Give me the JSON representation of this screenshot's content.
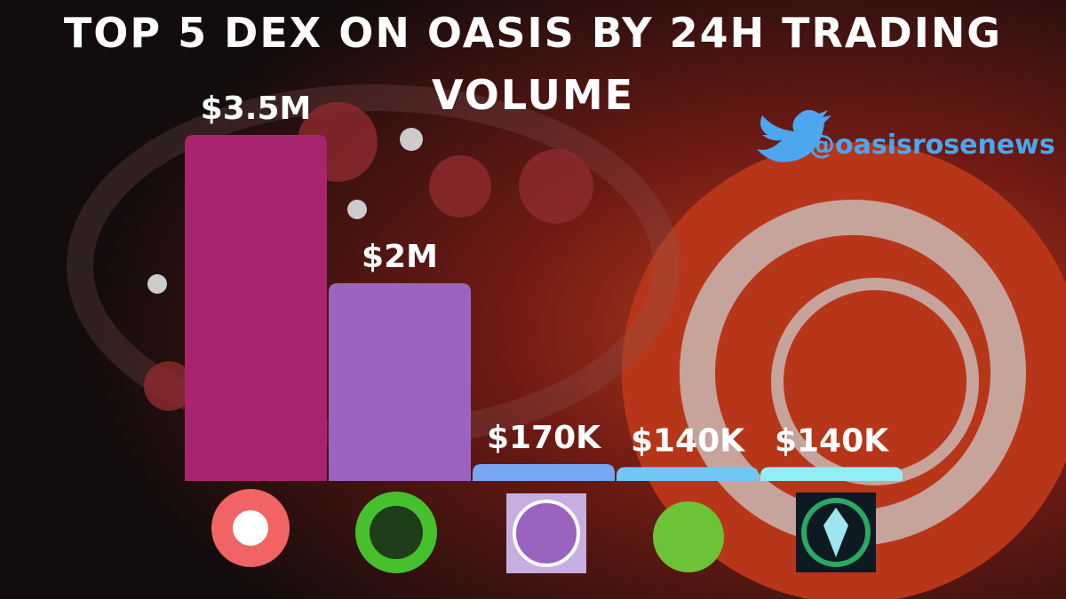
{
  "chart_data": {
    "type": "bar",
    "title": "TOP 5 DEX ON OASIS BY 24H TRADING VOLUME",
    "handle": "@oasisrosenews",
    "categories": [
      null,
      null,
      null,
      null,
      null
    ],
    "series": [
      {
        "values": [
          3500000,
          2000000,
          170000,
          140000,
          140000
        ],
        "value_labels": [
          "$3.5M",
          "$2M",
          "$170K",
          "$140K",
          "$140K"
        ],
        "colors": [
          "#a8246e",
          "#9d63c1",
          "#78a6f2",
          "#72c6f4",
          "#92eef4"
        ]
      }
    ]
  }
}
